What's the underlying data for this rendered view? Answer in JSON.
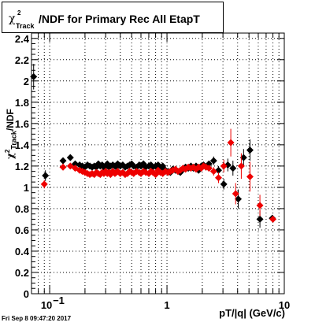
{
  "title": {
    "chi": "χ",
    "sup": "2",
    "sub": "Track",
    "text": "/NDF for Primary Rec All EtapT"
  },
  "ylabel": {
    "chi": "χ",
    "sup": "2",
    "sub": "Track",
    "text": "/NDF"
  },
  "xlabel": "pT/|q| (GeV/c)",
  "timestamp": "Fri Sep  8 09:47:20 2017",
  "chart_data": {
    "type": "scatter",
    "title": "χ²Track/NDF for Primary Rec All EtapT",
    "xlabel": "pT/|q| (GeV/c)",
    "ylabel": "χ²Track/NDF",
    "x_scale": "log",
    "xlim": [
      0.07,
      10
    ],
    "ylim": [
      0,
      2.45
    ],
    "grid": true,
    "x_ticks": [
      {
        "value": 0.1,
        "label": "10",
        "exp": "−1"
      },
      {
        "value": 1,
        "label": "1",
        "exp": ""
      },
      {
        "value": 10,
        "label": "10",
        "exp": ""
      }
    ],
    "y_ticks": [
      "0",
      "0.2",
      "0.4",
      "0.6",
      "0.8",
      "1",
      "1.2",
      "1.4",
      "1.6",
      "1.8",
      "2",
      "2.2",
      "2.4"
    ],
    "series": [
      {
        "color": "#000000",
        "x": [
          0.073,
          0.092,
          0.13,
          0.15,
          0.165,
          0.18,
          0.19,
          0.2,
          0.21,
          0.22,
          0.23,
          0.24,
          0.25,
          0.26,
          0.27,
          0.28,
          0.29,
          0.3,
          0.31,
          0.32,
          0.33,
          0.345,
          0.36,
          0.37,
          0.38,
          0.4,
          0.42,
          0.44,
          0.46,
          0.48,
          0.5,
          0.52,
          0.55,
          0.58,
          0.6,
          0.63,
          0.66,
          0.7,
          0.73,
          0.76,
          0.8,
          0.84,
          0.88,
          0.92,
          0.97,
          1.02,
          1.07,
          1.12,
          1.18,
          1.24,
          1.3,
          1.37,
          1.44,
          1.52,
          1.6,
          1.68,
          1.77,
          1.86,
          1.96,
          2.05,
          2.15,
          2.28,
          2.5,
          2.75,
          3.05,
          3.3,
          3.65,
          4.05,
          4.5,
          5.1,
          6.2,
          7.9
        ],
        "y": [
          2.04,
          1.11,
          1.25,
          1.28,
          1.22,
          1.21,
          1.2,
          1.19,
          1.21,
          1.2,
          1.19,
          1.2,
          1.19,
          1.22,
          1.2,
          1.21,
          1.19,
          1.2,
          1.22,
          1.19,
          1.2,
          1.21,
          1.2,
          1.19,
          1.22,
          1.2,
          1.21,
          1.19,
          1.2,
          1.21,
          1.22,
          1.2,
          1.19,
          1.21,
          1.2,
          1.22,
          1.19,
          1.2,
          1.21,
          1.19,
          1.2,
          1.21,
          1.18,
          1.2,
          1.16,
          1.15,
          1.14,
          1.17,
          1.16,
          1.15,
          1.14,
          1.17,
          1.19,
          1.18,
          1.2,
          1.18,
          1.2,
          1.16,
          1.2,
          1.21,
          1.19,
          1.22,
          1.25,
          1.16,
          1.03,
          1.21,
          1.18,
          0.89,
          1.28,
          1.35,
          0.7,
          0.71
        ],
        "err": [
          0.12,
          0.05,
          0.03,
          0.02,
          0.02,
          0.02,
          0.02,
          0.02,
          0.02,
          0.02,
          0.02,
          0.02,
          0.02,
          0.02,
          0.02,
          0.02,
          0.02,
          0.02,
          0.02,
          0.02,
          0.02,
          0.02,
          0.02,
          0.02,
          0.02,
          0.02,
          0.02,
          0.02,
          0.02,
          0.02,
          0.02,
          0.02,
          0.02,
          0.02,
          0.02,
          0.02,
          0.02,
          0.02,
          0.02,
          0.02,
          0.02,
          0.02,
          0.02,
          0.02,
          0.02,
          0.02,
          0.02,
          0.02,
          0.02,
          0.02,
          0.02,
          0.02,
          0.02,
          0.02,
          0.02,
          0.02,
          0.02,
          0.02,
          0.02,
          0.02,
          0.02,
          0.03,
          0.04,
          0.04,
          0.05,
          0.06,
          0.07,
          0.09,
          0.08,
          0.1,
          0.08,
          0.03
        ]
      },
      {
        "color": "#ee0000",
        "x": [
          0.09,
          0.13,
          0.15,
          0.165,
          0.18,
          0.19,
          0.2,
          0.21,
          0.22,
          0.23,
          0.24,
          0.25,
          0.26,
          0.27,
          0.28,
          0.29,
          0.3,
          0.31,
          0.32,
          0.33,
          0.345,
          0.36,
          0.37,
          0.38,
          0.4,
          0.42,
          0.44,
          0.46,
          0.48,
          0.5,
          0.52,
          0.55,
          0.58,
          0.6,
          0.63,
          0.66,
          0.7,
          0.73,
          0.76,
          0.8,
          0.84,
          0.88,
          0.92,
          0.97,
          1.02,
          1.07,
          1.12,
          1.18,
          1.24,
          1.3,
          1.37,
          1.44,
          1.52,
          1.6,
          1.68,
          1.77,
          1.86,
          1.96,
          2.05,
          2.15,
          2.28,
          2.5,
          2.75,
          3.05,
          3.5,
          3.85,
          4.3,
          5.1,
          6.2,
          8.0
        ],
        "y": [
          1.03,
          1.19,
          1.2,
          1.18,
          1.16,
          1.15,
          1.14,
          1.13,
          1.12,
          1.13,
          1.12,
          1.14,
          1.13,
          1.12,
          1.14,
          1.13,
          1.15,
          1.13,
          1.14,
          1.12,
          1.15,
          1.13,
          1.14,
          1.15,
          1.13,
          1.14,
          1.12,
          1.13,
          1.15,
          1.14,
          1.13,
          1.15,
          1.14,
          1.13,
          1.15,
          1.14,
          1.13,
          1.15,
          1.14,
          1.12,
          1.16,
          1.14,
          1.13,
          1.15,
          1.14,
          1.15,
          1.16,
          1.17,
          1.15,
          1.16,
          1.18,
          1.17,
          1.19,
          1.18,
          1.19,
          1.17,
          1.19,
          1.18,
          1.2,
          1.19,
          1.18,
          1.15,
          1.09,
          1.2,
          1.42,
          0.94,
          1.2,
          1.1,
          0.83,
          0.7
        ],
        "err": [
          0.04,
          0.03,
          0.02,
          0.02,
          0.02,
          0.02,
          0.02,
          0.02,
          0.02,
          0.02,
          0.02,
          0.02,
          0.02,
          0.02,
          0.02,
          0.02,
          0.02,
          0.02,
          0.02,
          0.02,
          0.02,
          0.02,
          0.02,
          0.02,
          0.02,
          0.02,
          0.02,
          0.02,
          0.02,
          0.02,
          0.02,
          0.02,
          0.02,
          0.02,
          0.02,
          0.02,
          0.02,
          0.02,
          0.02,
          0.02,
          0.02,
          0.02,
          0.02,
          0.02,
          0.02,
          0.02,
          0.02,
          0.02,
          0.02,
          0.02,
          0.02,
          0.02,
          0.02,
          0.02,
          0.02,
          0.02,
          0.02,
          0.02,
          0.02,
          0.02,
          0.03,
          0.04,
          0.05,
          0.06,
          0.13,
          0.1,
          0.12,
          0.14,
          0.1,
          0.03
        ]
      }
    ]
  }
}
